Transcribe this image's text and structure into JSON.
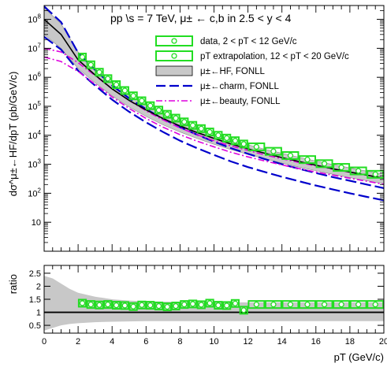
{
  "chart_data": {
    "title": "pp \\s = 7 TeV, μ± ← c,b in 2.5 < y < 4",
    "xlabel": "pT (GeV/c)",
    "colors": {
      "data": "#22dd22",
      "hf_band": "#c8c8c8",
      "hf_line": "#000000",
      "charm": "#0000cc",
      "beauty": "#dd00dd"
    },
    "top_panel": {
      "type": "line",
      "ylabel": "dσ^μ±←HF/dpT (pb/GeV/c)",
      "yscale": "log",
      "xlim": [
        0,
        20
      ],
      "ylim": [
        1,
        300000000
      ],
      "yticks": [
        {
          "value": 10,
          "label": "10"
        },
        {
          "value": 100,
          "label": "10^2"
        },
        {
          "value": 1000,
          "label": "10^3"
        },
        {
          "value": 10000,
          "label": "10^4"
        },
        {
          "value": 100000,
          "label": "10^5"
        },
        {
          "value": 1000000,
          "label": "10^6"
        },
        {
          "value": 10000000,
          "label": "10^7"
        },
        {
          "value": 100000000,
          "label": "10^8"
        }
      ],
      "legend": [
        {
          "label": "data, 2 < pT < 12 GeV/c",
          "style": "data"
        },
        {
          "label": "pT extrapolation, 12 < pT < 20 GeV/c",
          "style": "data"
        },
        {
          "label": "μ±←HF, FONLL",
          "style": "hf"
        },
        {
          "label": "μ±←charm, FONLL",
          "style": "charm"
        },
        {
          "label": "μ±←beauty, FONLL",
          "style": "beauty"
        }
      ],
      "data_points": [
        {
          "x": 2.25,
          "y": 5000000
        },
        {
          "x": 2.75,
          "y": 2700000
        },
        {
          "x": 3.25,
          "y": 1500000
        },
        {
          "x": 3.75,
          "y": 900000
        },
        {
          "x": 4.25,
          "y": 560000
        },
        {
          "x": 4.75,
          "y": 350000
        },
        {
          "x": 5.25,
          "y": 230000
        },
        {
          "x": 5.75,
          "y": 155000
        },
        {
          "x": 6.25,
          "y": 105000
        },
        {
          "x": 6.75,
          "y": 74000
        },
        {
          "x": 7.25,
          "y": 53000
        },
        {
          "x": 7.75,
          "y": 39000
        },
        {
          "x": 8.25,
          "y": 29000
        },
        {
          "x": 8.75,
          "y": 22000
        },
        {
          "x": 9.25,
          "y": 17000
        },
        {
          "x": 9.75,
          "y": 13000
        },
        {
          "x": 10.25,
          "y": 10000
        },
        {
          "x": 10.75,
          "y": 8000
        },
        {
          "x": 11.25,
          "y": 6500
        },
        {
          "x": 11.75,
          "y": 5000
        },
        {
          "x": 12.5,
          "y": 4000
        },
        {
          "x": 13.5,
          "y": 2800
        },
        {
          "x": 14.5,
          "y": 2000
        },
        {
          "x": 15.5,
          "y": 1450
        },
        {
          "x": 16.5,
          "y": 1050
        },
        {
          "x": 17.5,
          "y": 780
        },
        {
          "x": 18.5,
          "y": 590
        },
        {
          "x": 19.5,
          "y": 450
        }
      ],
      "bin_edges": [
        2,
        2.5,
        3,
        3.5,
        4,
        4.5,
        5,
        5.5,
        6,
        6.5,
        7,
        7.5,
        8,
        8.5,
        9,
        9.5,
        10,
        10.5,
        11,
        11.5,
        12,
        13,
        14,
        15,
        16,
        17,
        18,
        19,
        20
      ],
      "hf_central": {
        "x": [
          0,
          1,
          2,
          3,
          4,
          5,
          6,
          7,
          8,
          9,
          10,
          11,
          12,
          13,
          14,
          15,
          16,
          17,
          18,
          19,
          20
        ],
        "y": [
          100000000,
          30000000,
          4000000,
          1200000,
          400000,
          160000,
          75000,
          38000,
          21000,
          12500,
          7800,
          5000,
          3400,
          2400,
          1700,
          1250,
          930,
          700,
          540,
          420,
          330
        ]
      },
      "hf_band_upper": {
        "x": [
          0,
          1,
          2,
          3,
          4,
          5,
          6,
          7,
          8,
          9,
          10,
          11,
          12,
          13,
          14,
          15,
          16,
          17,
          18,
          19,
          20
        ],
        "y": [
          250000000,
          70000000,
          7500000,
          2000000,
          620000,
          240000,
          110000,
          55000,
          30000,
          18000,
          11000,
          7000,
          4700,
          3300,
          2400,
          1750,
          1300,
          980,
          750,
          580,
          460
        ]
      },
      "hf_band_lower": {
        "x": [
          0,
          1,
          2,
          3,
          4,
          5,
          6,
          7,
          8,
          9,
          10,
          11,
          12,
          13,
          14,
          15,
          16,
          17,
          18,
          19,
          20
        ],
        "y": [
          30000000,
          10000000,
          2000000,
          650000,
          230000,
          95000,
          45000,
          23000,
          13000,
          7800,
          4900,
          3200,
          2200,
          1550,
          1100,
          800,
          600,
          450,
          345,
          270,
          212
        ]
      },
      "charm_upper": {
        "x": [
          0,
          1,
          2,
          3,
          4,
          5,
          6,
          7,
          8,
          9,
          10,
          11,
          12,
          13,
          14,
          15,
          16,
          17,
          18,
          19,
          20
        ],
        "y": [
          280000000,
          80000000,
          7000000,
          1800000,
          520000,
          190000,
          80000,
          37000,
          19000,
          10500,
          6000,
          3600,
          2300,
          1500,
          1000,
          700,
          500,
          360,
          270,
          200,
          150
        ]
      },
      "charm_lower": {
        "x": [
          0,
          1,
          2,
          3,
          4,
          5,
          6,
          7,
          8,
          9,
          10,
          11,
          12,
          13,
          14,
          15,
          16,
          17,
          18,
          19,
          20
        ],
        "y": [
          25000000,
          9000000,
          1700000,
          520000,
          170000,
          65000,
          28000,
          13000,
          6500,
          3600,
          2100,
          1250,
          800,
          540,
          370,
          260,
          185,
          135,
          100,
          75,
          57
        ]
      },
      "beauty_upper": {
        "x": [
          0,
          1,
          2,
          3,
          4,
          5,
          6,
          7,
          8,
          9,
          10,
          11,
          12,
          13,
          14,
          15,
          16,
          17,
          18,
          19,
          20
        ],
        "y": [
          10000000,
          7500000,
          3200000,
          1150000,
          400000,
          160000,
          70000,
          34000,
          18000,
          10500,
          6500,
          4300,
          3000,
          2100,
          1550,
          1150,
          880,
          680,
          530,
          420,
          330
        ]
      },
      "beauty_lower": {
        "x": [
          0,
          1,
          2,
          3,
          4,
          5,
          6,
          7,
          8,
          9,
          10,
          11,
          12,
          13,
          14,
          15,
          16,
          17,
          18,
          19,
          20
        ],
        "y": [
          5000000,
          3500000,
          1600000,
          580000,
          210000,
          85000,
          38000,
          19000,
          10500,
          6300,
          4000,
          2600,
          1800,
          1300,
          950,
          710,
          540,
          420,
          330,
          260,
          205
        ]
      }
    },
    "ratio_panel": {
      "type": "line",
      "ylabel": "ratio",
      "xlim": [
        0,
        20
      ],
      "ylim": [
        0.2,
        2.8
      ],
      "xticks": [
        0,
        2,
        4,
        6,
        8,
        10,
        12,
        14,
        16,
        18,
        20
      ],
      "yticks": [
        0.5,
        1,
        1.5,
        2,
        2.5
      ],
      "reference_line": 1,
      "band_upper": {
        "x": [
          0,
          0.5,
          1,
          1.5,
          2,
          3,
          4,
          5,
          6,
          8,
          10,
          12,
          14,
          16,
          18,
          20
        ],
        "y": [
          2.4,
          2.3,
          2.1,
          1.9,
          1.75,
          1.6,
          1.5,
          1.45,
          1.42,
          1.4,
          1.39,
          1.38,
          1.38,
          1.38,
          1.38,
          1.38
        ]
      },
      "band_lower": {
        "x": [
          0,
          0.5,
          1,
          1.5,
          2,
          3,
          4,
          5,
          6,
          8,
          10,
          12,
          14,
          16,
          18,
          20
        ],
        "y": [
          0.3,
          0.4,
          0.5,
          0.55,
          0.58,
          0.62,
          0.64,
          0.65,
          0.66,
          0.66,
          0.66,
          0.66,
          0.66,
          0.66,
          0.66,
          0.66
        ]
      },
      "points": [
        {
          "x": 2.25,
          "y": 1.35
        },
        {
          "x": 2.75,
          "y": 1.3
        },
        {
          "x": 3.25,
          "y": 1.28
        },
        {
          "x": 3.75,
          "y": 1.3
        },
        {
          "x": 4.25,
          "y": 1.27
        },
        {
          "x": 4.75,
          "y": 1.26
        },
        {
          "x": 5.25,
          "y": 1.22
        },
        {
          "x": 5.75,
          "y": 1.28
        },
        {
          "x": 6.25,
          "y": 1.27
        },
        {
          "x": 6.75,
          "y": 1.24
        },
        {
          "x": 7.25,
          "y": 1.21
        },
        {
          "x": 7.75,
          "y": 1.24
        },
        {
          "x": 8.25,
          "y": 1.3
        },
        {
          "x": 8.75,
          "y": 1.32
        },
        {
          "x": 9.25,
          "y": 1.29
        },
        {
          "x": 9.75,
          "y": 1.35
        },
        {
          "x": 10.25,
          "y": 1.27
        },
        {
          "x": 10.75,
          "y": 1.26
        },
        {
          "x": 11.25,
          "y": 1.34
        },
        {
          "x": 11.75,
          "y": 1.08
        },
        {
          "x": 12.5,
          "y": 1.3
        },
        {
          "x": 13.5,
          "y": 1.3
        },
        {
          "x": 14.5,
          "y": 1.3
        },
        {
          "x": 15.5,
          "y": 1.3
        },
        {
          "x": 16.5,
          "y": 1.3
        },
        {
          "x": 17.5,
          "y": 1.3
        },
        {
          "x": 18.5,
          "y": 1.3
        },
        {
          "x": 19.5,
          "y": 1.3
        }
      ]
    }
  }
}
